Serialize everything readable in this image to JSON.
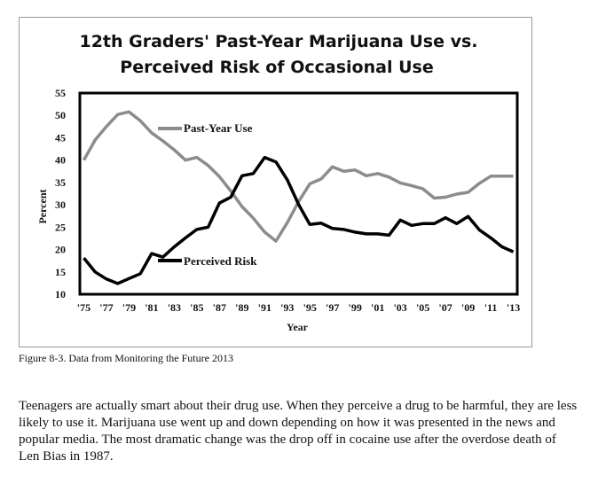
{
  "chart_data": {
    "type": "line",
    "title_lines": [
      "12th Graders' Past-Year Marijuana Use vs.",
      "Perceived Risk of Occasional Use"
    ],
    "ylabel": "Percent",
    "xlabel": "Year",
    "ylim": [
      10,
      55
    ],
    "yticks": [
      10,
      15,
      20,
      25,
      30,
      35,
      40,
      45,
      50,
      55
    ],
    "x": [
      1975,
      1976,
      1977,
      1978,
      1979,
      1980,
      1981,
      1982,
      1983,
      1984,
      1985,
      1986,
      1987,
      1988,
      1989,
      1990,
      1991,
      1992,
      1993,
      1994,
      1995,
      1996,
      1997,
      1998,
      1999,
      2000,
      2001,
      2002,
      2003,
      2004,
      2005,
      2006,
      2007,
      2008,
      2009,
      2010,
      2011,
      2012,
      2013
    ],
    "xtick_labels": [
      "'75",
      "'77",
      "'79",
      "'81",
      "'83",
      "'85",
      "'87",
      "'89",
      "'91",
      "'93",
      "'95",
      "'97",
      "'99",
      "'01",
      "'03",
      "'05",
      "'07",
      "'09",
      "'11",
      "'13"
    ],
    "series": [
      {
        "name": "Past-Year Use",
        "color": "#8c8c8c",
        "values": [
          40.0,
          44.5,
          47.5,
          50.2,
          50.8,
          48.8,
          46.1,
          44.3,
          42.3,
          40.0,
          40.6,
          38.8,
          36.3,
          33.1,
          29.6,
          27.0,
          23.9,
          21.9,
          26.0,
          30.7,
          34.7,
          35.8,
          38.5,
          37.5,
          37.8,
          36.5,
          37.0,
          36.2,
          34.9,
          34.3,
          33.6,
          31.5,
          31.7,
          32.4,
          32.8,
          34.8,
          36.4,
          36.4,
          36.4
        ]
      },
      {
        "name": "Perceived Risk",
        "color": "#000000",
        "values": [
          18.1,
          15.0,
          13.4,
          12.4,
          13.5,
          14.6,
          19.1,
          18.3,
          20.6,
          22.6,
          24.5,
          25.0,
          30.4,
          31.7,
          36.5,
          37.0,
          40.6,
          39.6,
          35.6,
          30.1,
          25.6,
          25.9,
          24.7,
          24.5,
          23.9,
          23.5,
          23.5,
          23.2,
          26.6,
          25.4,
          25.8,
          25.8,
          27.1,
          25.8,
          27.4,
          24.4,
          22.6,
          20.6,
          19.5
        ]
      }
    ]
  },
  "caption": "Figure 8-3. Data from Monitoring the Future 2013",
  "body_text": "Teenagers are actually smart about their drug use. When they perceive a drug to be harmful, they are less likely to use it. Marijuana use went up and down depending on how it was presented in the news and popular media. The most dramatic change was the drop off in cocaine use after the overdose death of Len Bias in 1987."
}
